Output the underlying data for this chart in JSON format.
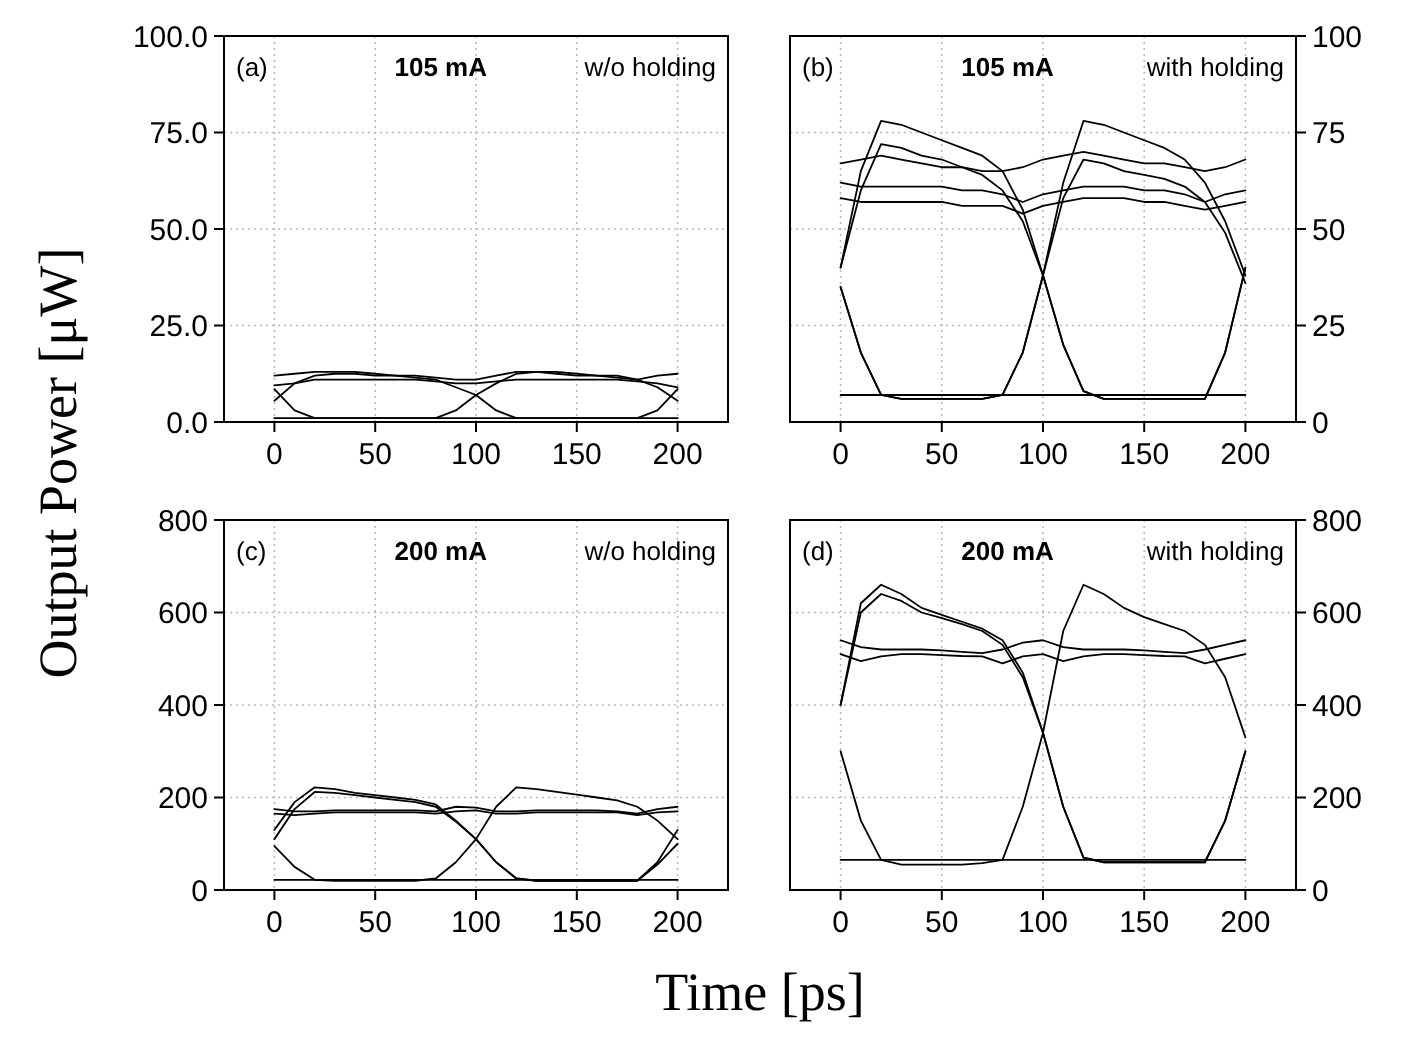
{
  "chart_data": [
    {
      "type": "line",
      "ylabel": "Output Power [μW]",
      "annotations": [
        "(a)",
        "105 mA",
        "w/o holding"
      ],
      "grid": true,
      "xlim": [
        -25,
        225
      ],
      "xticks": [
        0,
        50,
        100,
        150,
        200
      ],
      "ylim": [
        0,
        100
      ],
      "yticks": [
        {
          "value": 0,
          "label": "0.0"
        },
        {
          "value": 25,
          "label": "25.0"
        },
        {
          "value": 50,
          "label": "50.0"
        },
        {
          "value": 75,
          "label": "75.0"
        },
        {
          "value": 100,
          "label": "100.0"
        }
      ],
      "x": [
        0,
        10,
        20,
        30,
        40,
        50,
        60,
        70,
        80,
        90,
        100,
        110,
        120,
        130,
        140,
        150,
        160,
        170,
        180,
        190,
        200
      ],
      "series": [
        {
          "color": "#000000",
          "values": [
            12,
            12.5,
            13,
            13,
            13,
            12.5,
            12,
            12,
            11.5,
            11,
            11,
            12,
            13,
            13,
            12.5,
            12,
            12,
            11.5,
            11,
            12,
            12.5
          ]
        },
        {
          "color": "#000000",
          "values": [
            9.5,
            10,
            11,
            11,
            11,
            11,
            11,
            11,
            10.5,
            10,
            10,
            10.5,
            11,
            11,
            11,
            11,
            11,
            11,
            10.5,
            10,
            9
          ]
        },
        {
          "color": "#000000",
          "values": [
            5.5,
            10,
            12,
            12.5,
            12.5,
            12,
            12,
            11.5,
            11,
            9,
            7,
            3,
            1,
            1,
            1,
            1,
            1,
            1,
            1,
            3,
            8.5
          ]
        },
        {
          "color": "#000000",
          "values": [
            8.5,
            3,
            1,
            1,
            1,
            1,
            1,
            1,
            1,
            3,
            7,
            10,
            12.5,
            13,
            13,
            12.5,
            12,
            12,
            11,
            9,
            5.5
          ]
        },
        {
          "color": "#000000",
          "values": [
            1,
            1,
            1,
            1,
            1,
            1,
            1,
            1,
            1,
            1,
            1,
            1,
            1,
            1,
            1,
            1,
            1,
            1,
            1,
            1,
            1
          ]
        }
      ]
    },
    {
      "type": "line",
      "annotations": [
        "(b)",
        "105 mA",
        "with holding"
      ],
      "grid": true,
      "xlim": [
        -25,
        225
      ],
      "xticks": [
        0,
        50,
        100,
        150,
        200
      ],
      "y2lim": [
        0,
        100
      ],
      "y2ticks": [
        0,
        25,
        50,
        75,
        100
      ],
      "x": [
        0,
        10,
        20,
        30,
        40,
        50,
        60,
        70,
        80,
        90,
        100,
        110,
        120,
        130,
        140,
        150,
        160,
        170,
        180,
        190,
        200
      ],
      "series": [
        {
          "axis": "y2",
          "color": "#000000",
          "values": [
            67,
            68,
            69,
            68,
            67,
            66,
            66,
            65,
            65,
            66,
            68,
            69,
            70,
            69,
            68,
            67,
            67,
            66,
            65,
            66,
            68
          ]
        },
        {
          "axis": "y2",
          "color": "#000000",
          "values": [
            62,
            61,
            61,
            61,
            61,
            61,
            60,
            60,
            59,
            57,
            59,
            60,
            61,
            61,
            61,
            60,
            60,
            59,
            57,
            59,
            60
          ]
        },
        {
          "axis": "y2",
          "color": "#000000",
          "values": [
            58,
            57,
            57,
            57,
            57,
            57,
            56,
            56,
            56,
            54,
            56,
            57,
            58,
            58,
            58,
            57,
            57,
            56,
            55,
            56,
            57
          ]
        },
        {
          "axis": "y2",
          "color": "#000000",
          "values": [
            40,
            65,
            78,
            77,
            75,
            73,
            71,
            69,
            65,
            55,
            38,
            20,
            8,
            6,
            6,
            6,
            6,
            6,
            6,
            18,
            40
          ]
        },
        {
          "axis": "y2",
          "color": "#000000",
          "values": [
            40,
            60,
            72,
            71,
            69,
            68,
            66,
            64,
            60,
            52,
            38,
            20,
            8,
            6,
            6,
            6,
            6,
            6,
            6,
            18,
            40
          ]
        },
        {
          "axis": "y2",
          "color": "#000000",
          "values": [
            35,
            18,
            7,
            6,
            6,
            6,
            6,
            6,
            7,
            18,
            38,
            62,
            78,
            77,
            75,
            73,
            71,
            68,
            62,
            52,
            38
          ]
        },
        {
          "axis": "y2",
          "color": "#000000",
          "values": [
            35,
            18,
            7,
            6,
            6,
            6,
            6,
            6,
            7,
            18,
            38,
            58,
            68,
            67,
            65,
            64,
            63,
            61,
            57,
            49,
            36
          ]
        },
        {
          "axis": "y2",
          "color": "#000000",
          "values": [
            7,
            7,
            7,
            7,
            7,
            7,
            7,
            7,
            7,
            7,
            7,
            7,
            7,
            7,
            7,
            7,
            7,
            7,
            7,
            7,
            7
          ]
        }
      ]
    },
    {
      "type": "line",
      "xlabel": "Time [ps]",
      "annotations": [
        "(c)",
        "200 mA",
        "w/o holding"
      ],
      "grid": true,
      "xlim": [
        -25,
        225
      ],
      "xticks": [
        0,
        50,
        100,
        150,
        200
      ],
      "ylim": [
        0,
        800
      ],
      "yticks": [
        0,
        200,
        400,
        600,
        800
      ],
      "x": [
        0,
        10,
        20,
        30,
        40,
        50,
        60,
        70,
        80,
        90,
        100,
        110,
        120,
        130,
        140,
        150,
        160,
        170,
        180,
        190,
        200
      ],
      "series": [
        {
          "color": "#000000",
          "values": [
            175,
            170,
            170,
            172,
            172,
            172,
            172,
            172,
            170,
            180,
            178,
            170,
            170,
            172,
            172,
            172,
            172,
            170,
            165,
            175,
            180
          ]
        },
        {
          "color": "#000000",
          "values": [
            165,
            162,
            165,
            168,
            168,
            168,
            168,
            168,
            165,
            170,
            172,
            165,
            165,
            168,
            168,
            168,
            168,
            168,
            162,
            168,
            170
          ]
        },
        {
          "color": "#000000",
          "values": [
            130,
            190,
            222,
            218,
            210,
            205,
            200,
            195,
            185,
            150,
            110,
            60,
            25,
            20,
            20,
            20,
            20,
            20,
            20,
            60,
            130
          ]
        },
        {
          "color": "#000000",
          "values": [
            110,
            175,
            212,
            210,
            205,
            200,
            195,
            190,
            180,
            148,
            110,
            60,
            25,
            20,
            20,
            20,
            20,
            20,
            20,
            55,
            100
          ]
        },
        {
          "color": "#000000",
          "values": [
            95,
            50,
            22,
            20,
            20,
            20,
            20,
            20,
            25,
            60,
            110,
            180,
            222,
            218,
            212,
            206,
            200,
            194,
            180,
            150,
            110
          ]
        },
        {
          "color": "#000000",
          "values": [
            22,
            22,
            22,
            22,
            22,
            22,
            22,
            22,
            22,
            22,
            22,
            22,
            22,
            22,
            22,
            22,
            22,
            22,
            22,
            22,
            22
          ]
        }
      ]
    },
    {
      "type": "line",
      "annotations": [
        "(d)",
        "200 mA",
        "with holding"
      ],
      "grid": true,
      "xlim": [
        -25,
        225
      ],
      "xticks": [
        0,
        50,
        100,
        150,
        200
      ],
      "y2lim": [
        0,
        800
      ],
      "y2ticks": [
        0,
        200,
        400,
        600,
        800
      ],
      "x": [
        0,
        10,
        20,
        30,
        40,
        50,
        60,
        70,
        80,
        90,
        100,
        110,
        120,
        130,
        140,
        150,
        160,
        170,
        180,
        190,
        200
      ],
      "series": [
        {
          "axis": "y2",
          "color": "#000000",
          "values": [
            540,
            525,
            520,
            520,
            520,
            518,
            515,
            512,
            520,
            535,
            540,
            525,
            520,
            520,
            520,
            518,
            515,
            512,
            520,
            530,
            540
          ]
        },
        {
          "axis": "y2",
          "color": "#000000",
          "values": [
            510,
            495,
            505,
            510,
            510,
            508,
            506,
            505,
            490,
            505,
            510,
            495,
            505,
            510,
            510,
            508,
            506,
            505,
            490,
            500,
            510
          ]
        },
        {
          "axis": "y2",
          "color": "#000000",
          "values": [
            400,
            620,
            660,
            640,
            610,
            595,
            580,
            565,
            540,
            470,
            340,
            180,
            70,
            60,
            60,
            60,
            60,
            60,
            60,
            150,
            300
          ]
        },
        {
          "axis": "y2",
          "color": "#000000",
          "values": [
            400,
            600,
            640,
            625,
            600,
            588,
            575,
            560,
            530,
            460,
            340,
            180,
            70,
            60,
            60,
            60,
            60,
            60,
            60,
            150,
            300
          ]
        },
        {
          "axis": "y2",
          "color": "#000000",
          "values": [
            300,
            150,
            65,
            55,
            55,
            55,
            55,
            58,
            65,
            180,
            340,
            560,
            660,
            640,
            610,
            590,
            575,
            560,
            530,
            460,
            330
          ]
        },
        {
          "axis": "y2",
          "color": "#000000",
          "values": [
            65,
            65,
            65,
            65,
            65,
            65,
            65,
            65,
            65,
            65,
            65,
            65,
            65,
            65,
            65,
            65,
            65,
            65,
            65,
            65,
            65
          ]
        }
      ]
    }
  ]
}
